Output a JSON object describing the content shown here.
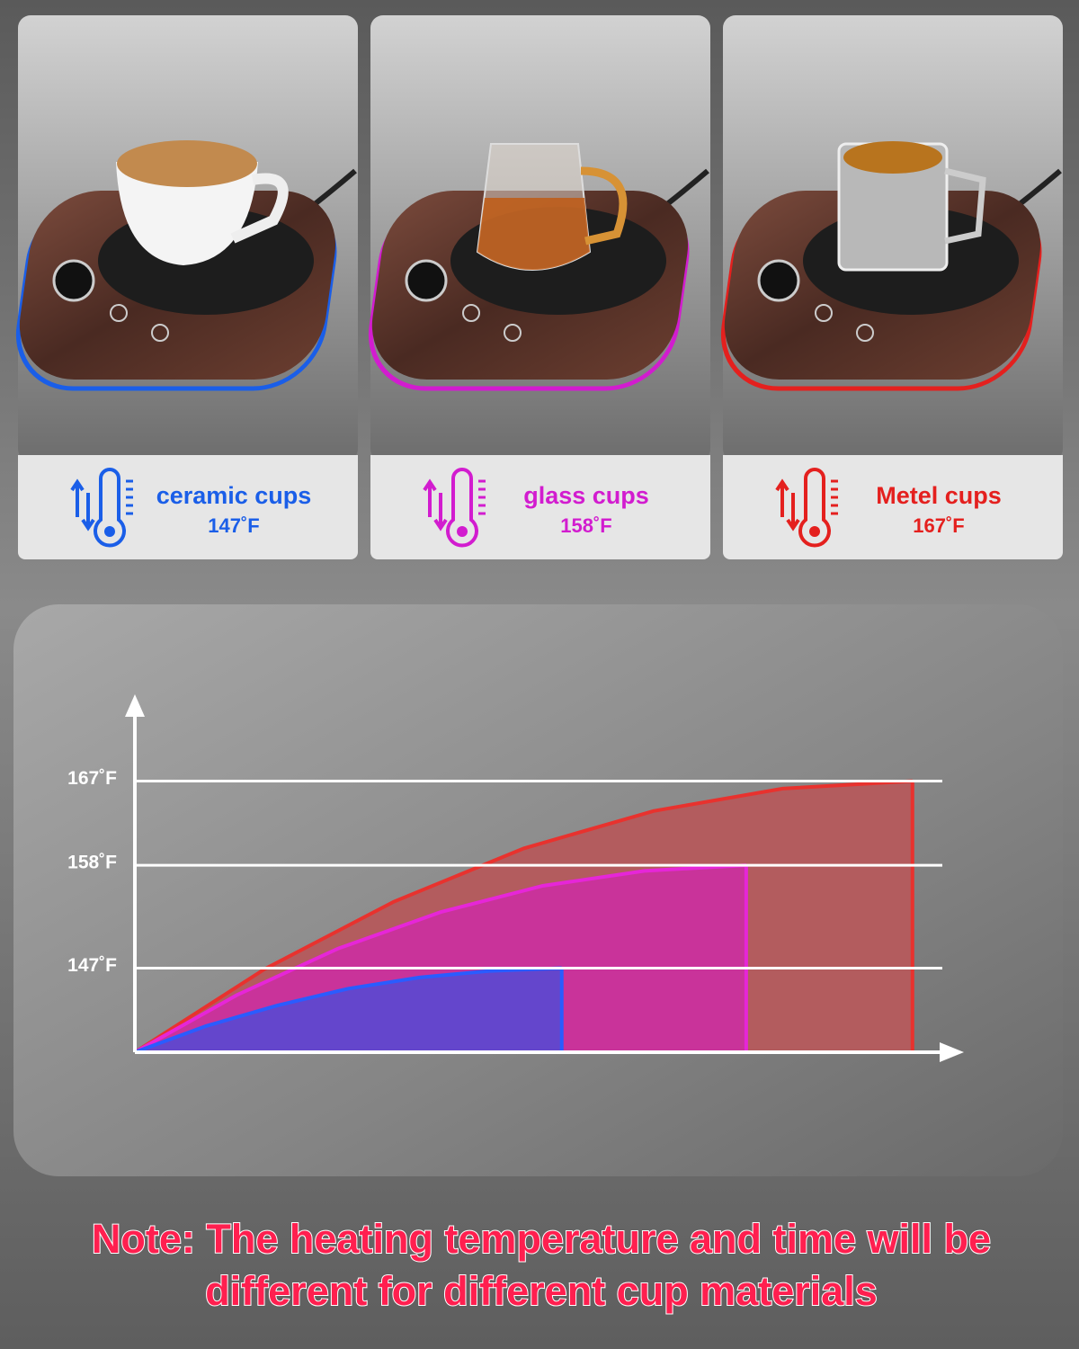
{
  "cards": [
    {
      "name": "ceramic cups",
      "temperature": "147˚F",
      "color": "#1a5ee8"
    },
    {
      "name": "glass cups",
      "temperature": "158˚F",
      "color": "#d21ccf"
    },
    {
      "name": "Metel cups",
      "temperature": "167˚F",
      "color": "#e4201e"
    }
  ],
  "chart_data": {
    "type": "area",
    "ylim": [
      138,
      176
    ],
    "xlim": [
      0,
      100
    ],
    "grid": true,
    "yticks": [
      {
        "value": 147,
        "label": "147˚F"
      },
      {
        "value": 158,
        "label": "158˚F"
      },
      {
        "value": 167,
        "label": "167˚F"
      }
    ],
    "series": [
      {
        "color": "#e8322e",
        "fill": "#b35c5e",
        "x": [
          0,
          15.7,
          31.3,
          47,
          62.7,
          78.3,
          94
        ],
        "values": [
          138,
          146.9,
          154.1,
          159.8,
          163.8,
          166.2,
          167
        ]
      },
      {
        "color": "#e626d8",
        "fill": "#c9339a",
        "x": [
          0,
          12.3,
          24.6,
          37,
          49.3,
          61.6,
          73.9
        ],
        "values": [
          138,
          144.1,
          149.1,
          153,
          155.8,
          157.4,
          158
        ]
      },
      {
        "color": "#2a5cff",
        "fill": "#6446cc",
        "x": [
          0,
          8.6,
          17.2,
          25.8,
          34.4,
          43,
          51.6
        ],
        "values": [
          138,
          140.8,
          143,
          144.8,
          146,
          146.7,
          147
        ]
      }
    ]
  },
  "note": [
    "Note: The heating temperature and time will be",
    "different for different cup materials"
  ]
}
